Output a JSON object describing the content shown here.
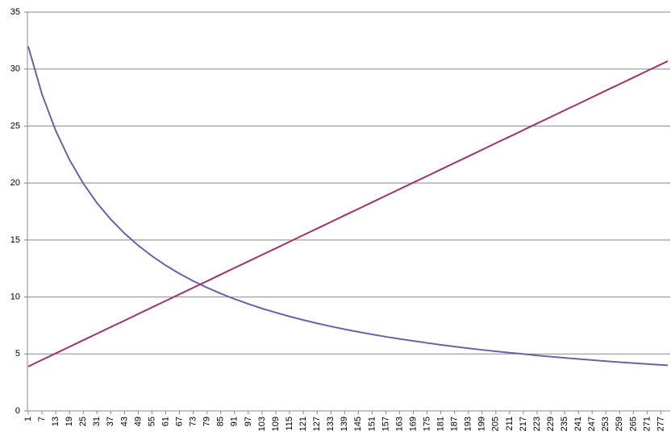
{
  "chart_data": {
    "type": "line",
    "x": [
      1,
      7,
      13,
      19,
      25,
      31,
      37,
      43,
      49,
      55,
      61,
      67,
      73,
      79,
      85,
      91,
      97,
      103,
      109,
      115,
      121,
      127,
      133,
      139,
      145,
      151,
      157,
      163,
      169,
      175,
      181,
      187,
      193,
      199,
      205,
      211,
      217,
      223,
      229,
      235,
      241,
      247,
      253,
      259,
      265,
      271,
      277,
      280
    ],
    "series": [
      {
        "color": "#6464a8",
        "values": [
          31.98,
          27.8,
          24.59,
          22.04,
          19.97,
          18.25,
          16.81,
          15.58,
          14.52,
          13.59,
          12.77,
          12.05,
          11.4,
          10.82,
          10.3,
          9.82,
          9.39,
          8.99,
          8.63,
          8.29,
          7.98,
          7.69,
          7.42,
          7.17,
          6.94,
          6.72,
          6.51,
          6.32,
          6.14,
          5.97,
          5.8,
          5.65,
          5.5,
          5.36,
          5.23,
          5.11,
          4.99,
          4.87,
          4.76,
          4.66,
          4.56,
          4.46,
          4.37,
          4.28,
          4.2,
          4.12,
          4.04,
          4.0
        ]
      },
      {
        "color": "#a3326c",
        "values": [
          3.9,
          4.48,
          5.05,
          5.63,
          6.21,
          6.78,
          7.36,
          7.93,
          8.51,
          9.09,
          9.66,
          10.24,
          10.82,
          11.39,
          11.97,
          12.55,
          13.12,
          13.7,
          14.27,
          14.85,
          15.43,
          16.0,
          16.58,
          17.16,
          17.73,
          18.31,
          18.89,
          19.46,
          20.04,
          20.61,
          21.19,
          21.77,
          22.34,
          22.92,
          23.5,
          24.07,
          24.65,
          25.23,
          25.8,
          26.38,
          26.95,
          27.53,
          28.11,
          28.68,
          29.26,
          29.84,
          30.41,
          30.7
        ]
      }
    ],
    "xlim": [
      1,
      280
    ],
    "xticks": [
      1,
      7,
      13,
      19,
      25,
      31,
      37,
      43,
      49,
      55,
      61,
      67,
      73,
      79,
      85,
      91,
      97,
      103,
      109,
      115,
      121,
      127,
      133,
      139,
      145,
      151,
      157,
      163,
      169,
      175,
      181,
      187,
      193,
      199,
      205,
      211,
      217,
      223,
      229,
      235,
      241,
      247,
      253,
      259,
      265,
      271,
      277
    ],
    "ylim": [
      0,
      35
    ],
    "yticks": [
      0,
      5,
      10,
      15,
      20,
      25,
      30,
      35
    ],
    "grid": true
  }
}
